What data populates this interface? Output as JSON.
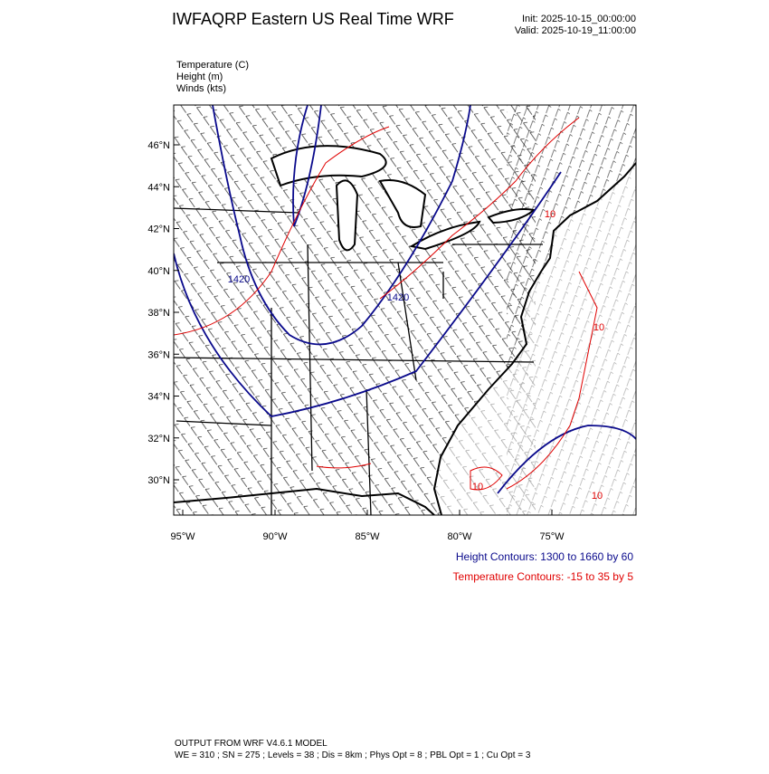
{
  "header": {
    "title": "IWFAQRP Eastern US Real Time WRF",
    "init": "Init: 2025-10-15_00:00:00",
    "valid": "Valid: 2025-10-19_11:00:00"
  },
  "fields": [
    "Temperature   (C)",
    "Height   (m)",
    "Winds   (kts)"
  ],
  "axes": {
    "lat_labels": [
      "46°N",
      "44°N",
      "42°N",
      "40°N",
      "38°N",
      "36°N",
      "34°N",
      "32°N",
      "30°N"
    ],
    "lon_labels": [
      "95°W",
      "90°W",
      "85°W",
      "80°W",
      "75°W"
    ]
  },
  "contour_labels": {
    "height": [
      "1420",
      "1420"
    ],
    "temperature": [
      "10",
      "10",
      "10",
      "10"
    ]
  },
  "contour_info": {
    "height": "Height Contours: 1300 to 1660 by 60",
    "temperature": "Temperature Contours: -15 to 35 by 5"
  },
  "footer": {
    "line1": "OUTPUT FROM WRF V4.6.1 MODEL",
    "line2": "WE = 310 ; SN = 275 ; Levels = 38 ; Dis = 8km ; Phys Opt = 8 ; PBL Opt = 1 ; Cu Opt = 3"
  }
}
